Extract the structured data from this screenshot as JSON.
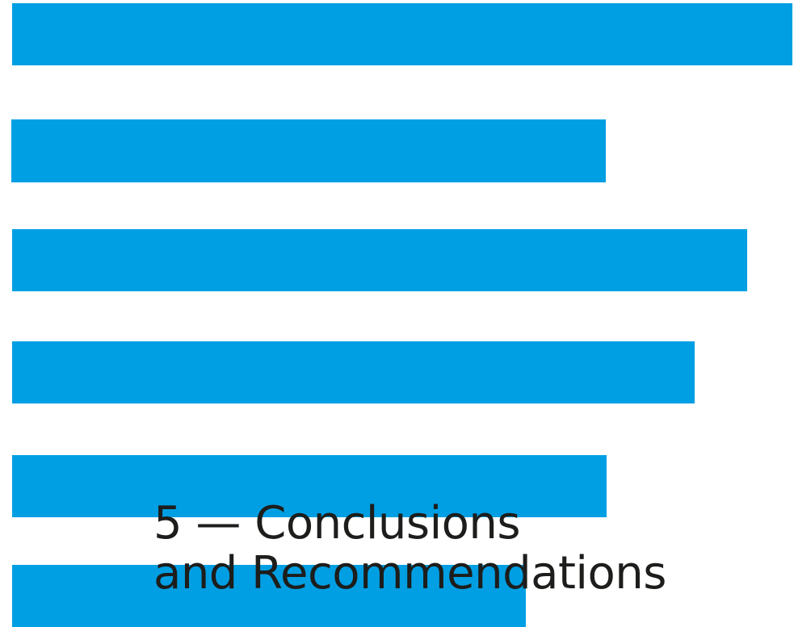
{
  "accent_color": "#009fe3",
  "text_color": "#1d1d1b",
  "chapter": {
    "title_line_1": "5 — Conclusions",
    "title_line_2": "and Recommendations"
  }
}
